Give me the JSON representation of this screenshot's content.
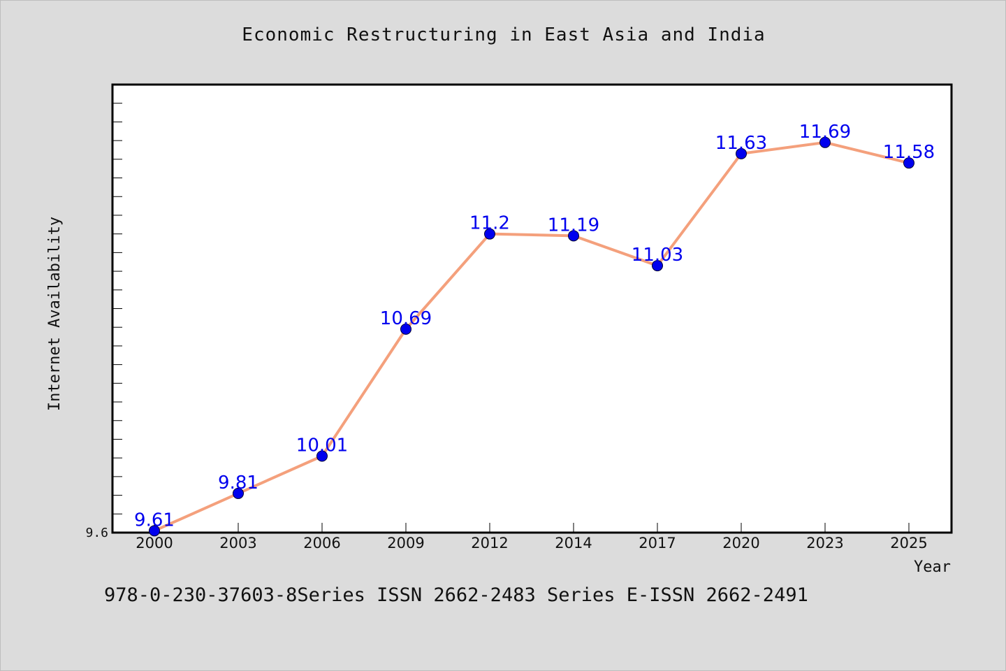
{
  "chart_data": {
    "type": "line",
    "title": "Economic Restructuring in East Asia and India",
    "xlabel": "Year",
    "ylabel": "Internet Availability",
    "categories": [
      "2000",
      "2003",
      "2006",
      "2009",
      "2012",
      "2014",
      "2017",
      "2020",
      "2023",
      "2025"
    ],
    "series": [
      {
        "values": [
          9.61,
          9.81,
          10.01,
          10.69,
          11.2,
          11.19,
          11.03,
          11.63,
          11.69,
          11.58
        ],
        "labels": [
          "9.61",
          "9.81",
          "10.01",
          "10.69",
          "11.2",
          "11.19",
          "11.03",
          "11.63",
          "11.69",
          "11.58"
        ]
      }
    ],
    "ylim": [
      9.6,
      12.0
    ],
    "y_tick_labels": [
      "9.6"
    ],
    "grid": false,
    "line_color": "#f4a07c",
    "marker_color": "#0000ee",
    "label_color": "#0000ee"
  },
  "footer_note": "978-0-230-37603-8Series ISSN 2662-2483 Series E-ISSN 2662-2491",
  "colors": {
    "background": "#dcdcdc",
    "plot_background": "#ffffff",
    "axis": "#000000"
  }
}
